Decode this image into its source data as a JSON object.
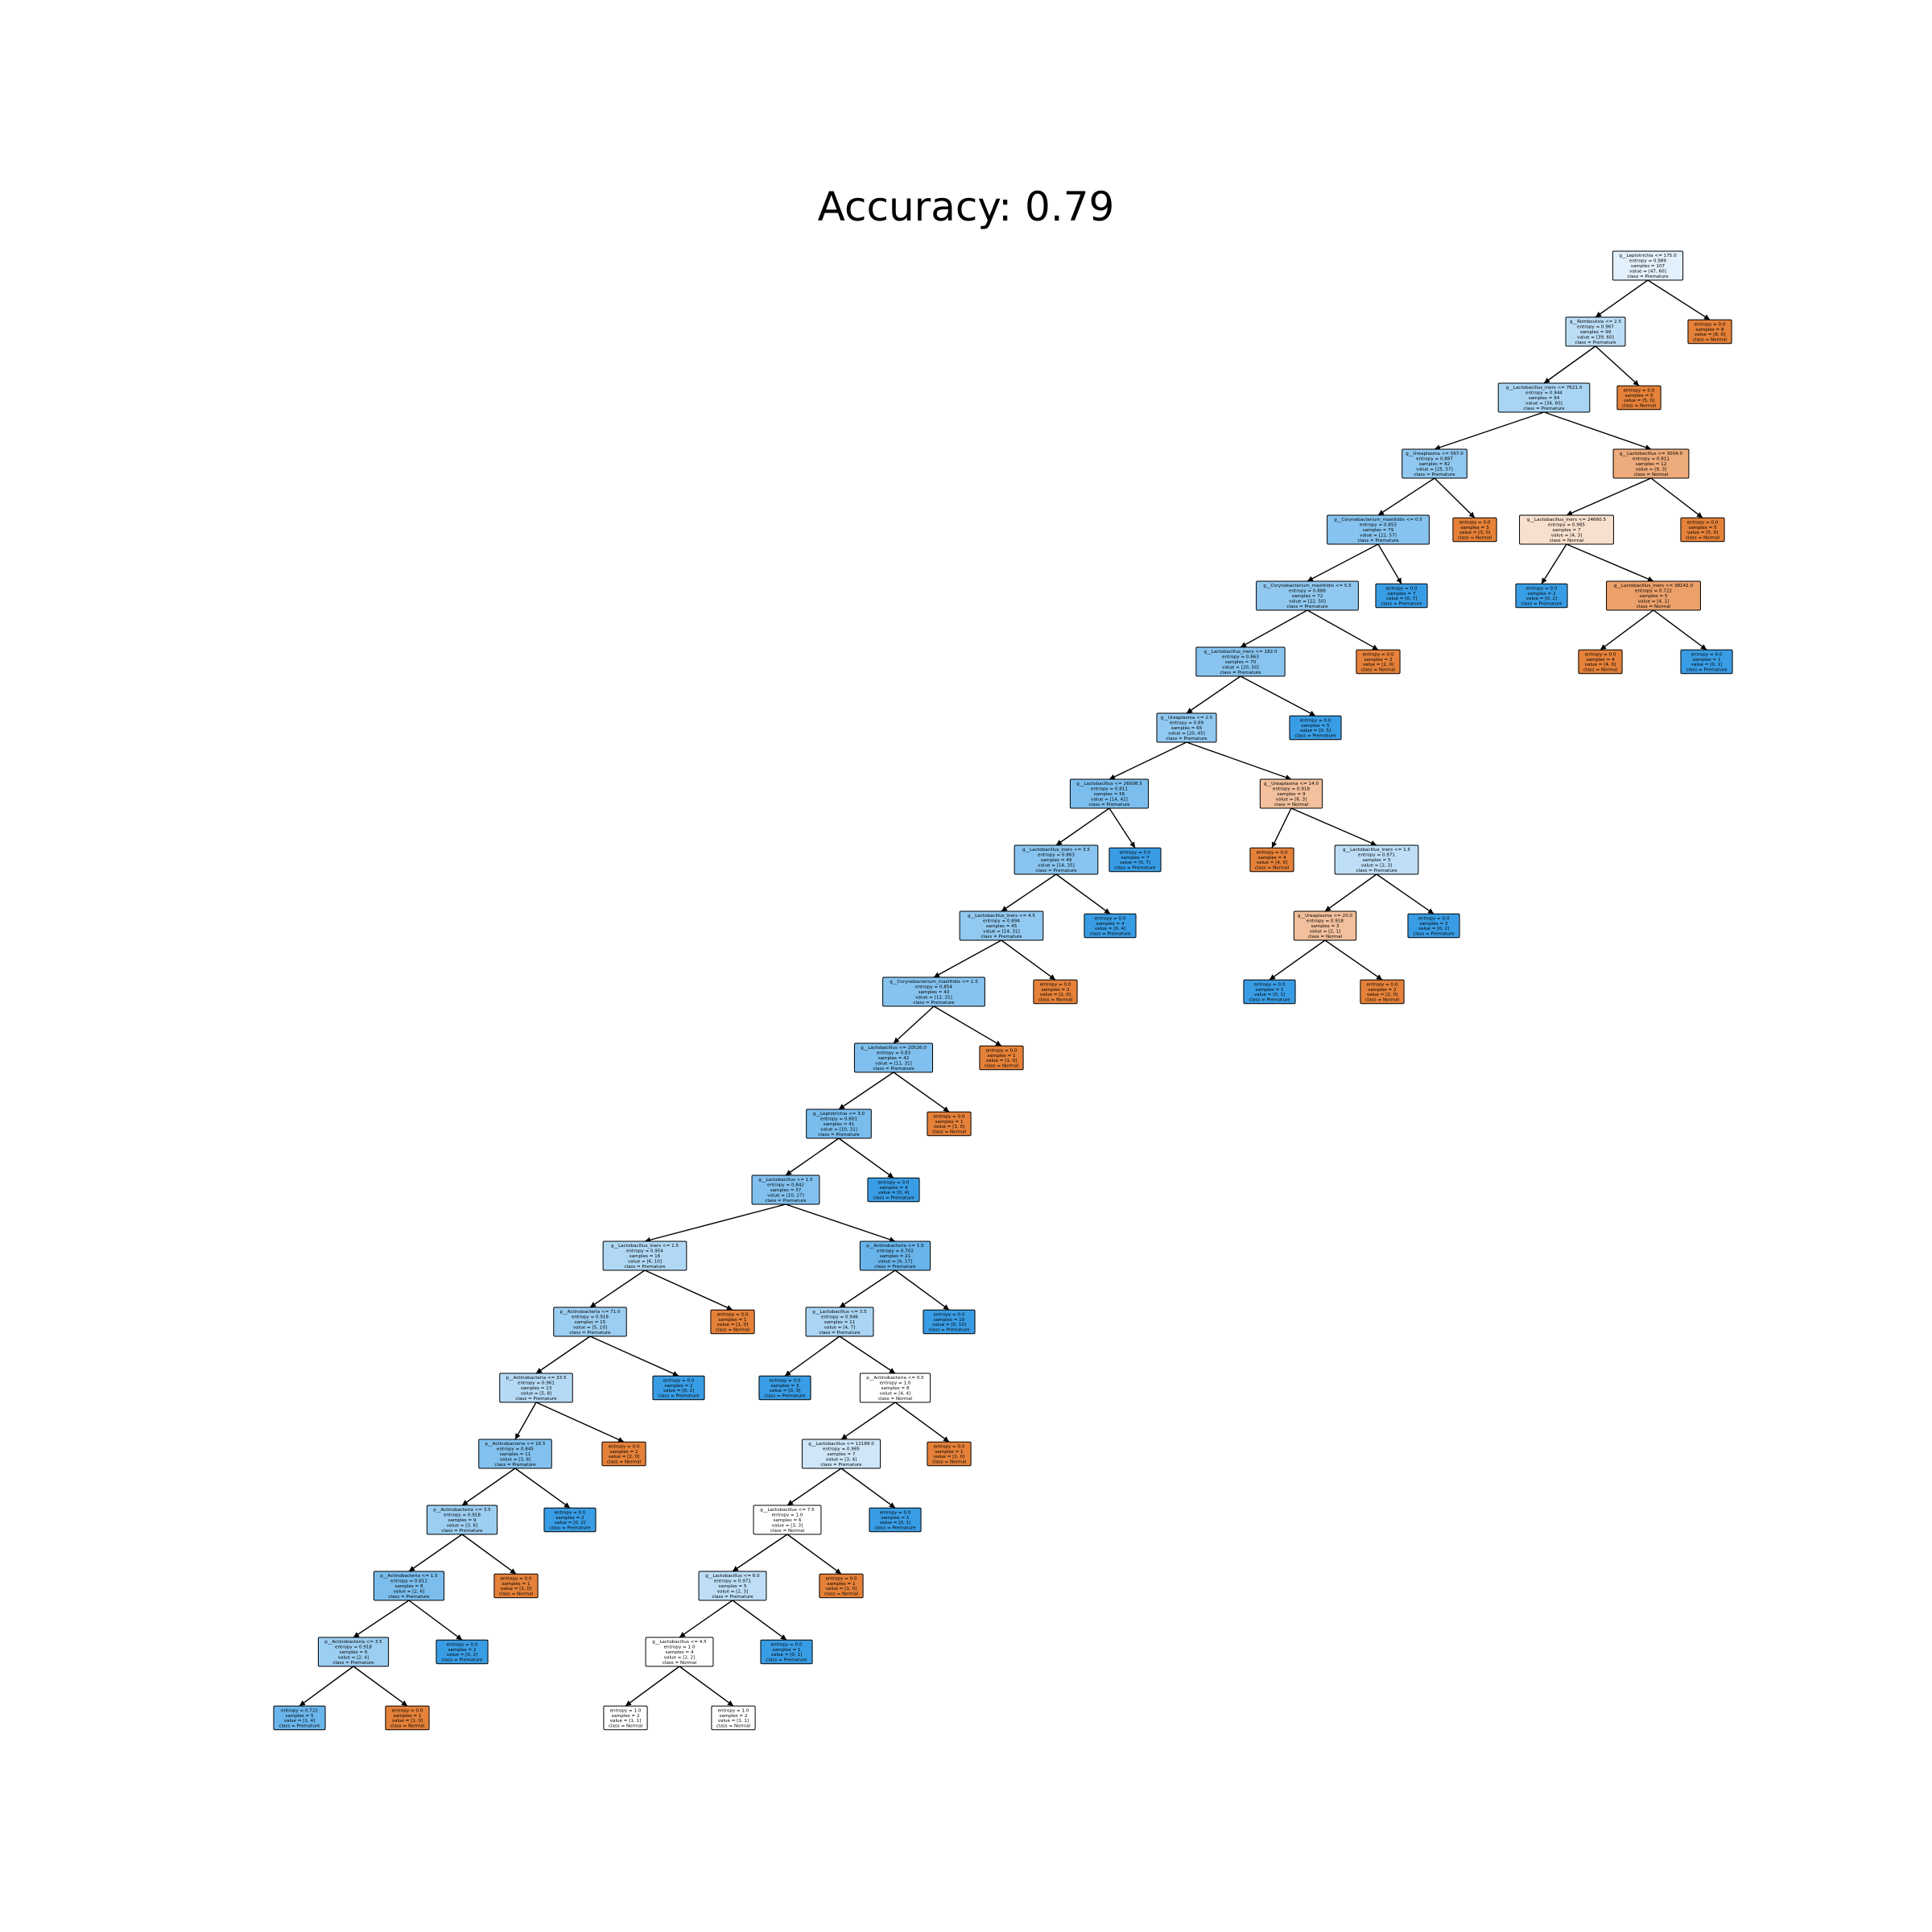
{
  "title": "Accuracy: 0.79",
  "colors": {
    "premature_strong": "#399de5",
    "premature_light": "#eaf4fc",
    "normal_strong": "#e58139",
    "normal_light": "#f9e5d5",
    "neutral": "#ffffff",
    "edge": "#000000"
  },
  "nodes": [
    {
      "id": 0,
      "lines": [
        "g__Leptotrichia <= 175.0",
        "entropy = 0.989",
        "samples = 107",
        "value = [47, 60]",
        "class = Premature"
      ],
      "color": "#e2f0fb"
    },
    {
      "id": 1,
      "lines": [
        "g__Romboutsia <= 2.5",
        "entropy = 0.967",
        "samples = 99",
        "value = [39, 60]",
        "class = Premature"
      ],
      "color": "#bbddf6"
    },
    {
      "id": 2,
      "lines": [
        "entropy = 0.0",
        "samples = 8",
        "value = [8, 0]",
        "class = Normal"
      ],
      "color": "#e58139"
    },
    {
      "id": 3,
      "lines": [
        "g__Lactobacillus_iners <= 7621.0",
        "entropy = 0.944",
        "samples = 94",
        "value = [34, 60]",
        "class = Premature"
      ],
      "color": "#a9d5f4"
    },
    {
      "id": 4,
      "lines": [
        "entropy = 0.0",
        "samples = 5",
        "value = [5, 0]",
        "class = Normal"
      ],
      "color": "#e58139"
    },
    {
      "id": 5,
      "lines": [
        "g__Ureaplasma <= 567.0",
        "entropy = 0.887",
        "samples = 82",
        "value = [25, 57]",
        "class = Premature"
      ],
      "color": "#90c8f0"
    },
    {
      "id": 6,
      "lines": [
        "g__Lactobacillus <= 3004.0",
        "entropy = 0.811",
        "samples = 12",
        "value = [9, 3]",
        "class = Normal"
      ],
      "color": "#eeab7b"
    },
    {
      "id": 7,
      "lines": [
        "g__Corynebacterium_mastitidis <= 0.5",
        "entropy = 0.853",
        "samples = 79",
        "value = [22, 57]",
        "class = Premature"
      ],
      "color": "#86c3ef"
    },
    {
      "id": 8,
      "lines": [
        "entropy = 0.0",
        "samples = 3",
        "value = [3, 0]",
        "class = Normal"
      ],
      "color": "#e58139"
    },
    {
      "id": 9,
      "lines": [
        "g__Lactobacillus_iners <= 24660.5",
        "entropy = 0.985",
        "samples = 7",
        "value = [4, 3]",
        "class = Normal"
      ],
      "color": "#f8e0ce"
    },
    {
      "id": 10,
      "lines": [
        "entropy = 0.0",
        "samples = 5",
        "value = [5, 0]",
        "class = Normal"
      ],
      "color": "#e58139"
    },
    {
      "id": 11,
      "lines": [
        "g__Corynebacterium_mastitidis <= 5.5",
        "entropy = 0.888",
        "samples = 72",
        "value = [22, 50]",
        "class = Premature"
      ],
      "color": "#90c8f0"
    },
    {
      "id": 12,
      "lines": [
        "entropy = 0.0",
        "samples = 7",
        "value = [0, 7]",
        "class = Premature"
      ],
      "color": "#399de5"
    },
    {
      "id": 13,
      "lines": [
        "entropy = 0.0",
        "samples = 2",
        "value = [0, 2]",
        "class = Premature"
      ],
      "color": "#399de5"
    },
    {
      "id": 14,
      "lines": [
        "g__Lactobacillus_iners <= 38142.0",
        "entropy = 0.722",
        "samples = 5",
        "value = [4, 1]",
        "class = Normal"
      ],
      "color": "#eca06a"
    },
    {
      "id": 15,
      "lines": [
        "g__Lactobacillus_iners <= 182.0",
        "entropy = 0.863",
        "samples = 70",
        "value = [20, 50]",
        "class = Premature"
      ],
      "color": "#88c4ef"
    },
    {
      "id": 16,
      "lines": [
        "entropy = 0.0",
        "samples = 2",
        "value = [2, 0]",
        "class = Normal"
      ],
      "color": "#e58139"
    },
    {
      "id": 17,
      "lines": [
        "entropy = 0.0",
        "samples = 4",
        "value = [4, 0]",
        "class = Normal"
      ],
      "color": "#e58139"
    },
    {
      "id": 18,
      "lines": [
        "entropy = 0.0",
        "samples = 1",
        "value = [0, 1]",
        "class = Premature"
      ],
      "color": "#399de5"
    },
    {
      "id": 19,
      "lines": [
        "g__Ureaplasma <= 2.5",
        "entropy = 0.89",
        "samples = 65",
        "value = [20, 45]",
        "class = Premature"
      ],
      "color": "#91c9f1"
    },
    {
      "id": 20,
      "lines": [
        "entropy = 0.0",
        "samples = 5",
        "value = [0, 5]",
        "class = Premature"
      ],
      "color": "#399de5"
    },
    {
      "id": 21,
      "lines": [
        "g__Lactobacillus <= 26008.5",
        "entropy = 0.811",
        "samples = 56",
        "value = [14, 42]",
        "class = Premature"
      ],
      "color": "#7bbeee"
    },
    {
      "id": 22,
      "lines": [
        "g__Ureaplasma <= 14.0",
        "entropy = 0.918",
        "samples = 9",
        "value = [6, 3]",
        "class = Normal"
      ],
      "color": "#f2c09c"
    },
    {
      "id": 23,
      "lines": [
        "g__Lactobacillus_iners <= 3.5",
        "entropy = 0.863",
        "samples = 49",
        "value = [14, 35]",
        "class = Premature"
      ],
      "color": "#88c4ef"
    },
    {
      "id": 24,
      "lines": [
        "entropy = 0.0",
        "samples = 7",
        "value = [0, 7]",
        "class = Premature"
      ],
      "color": "#399de5"
    },
    {
      "id": 25,
      "lines": [
        "entropy = 0.0",
        "samples = 4",
        "value = [4, 0]",
        "class = Normal"
      ],
      "color": "#e58139"
    },
    {
      "id": 26,
      "lines": [
        "g__Lactobacillus_iners <= 1.5",
        "entropy = 0.971",
        "samples = 5",
        "value = [2, 3]",
        "class = Premature"
      ],
      "color": "#bddef6"
    },
    {
      "id": 27,
      "lines": [
        "g__Lactobacillus_iners <= 4.5",
        "entropy = 0.894",
        "samples = 45",
        "value = [14, 31]",
        "class = Premature"
      ],
      "color": "#92c9f1"
    },
    {
      "id": 28,
      "lines": [
        "entropy = 0.0",
        "samples = 4",
        "value = [0, 4]",
        "class = Premature"
      ],
      "color": "#399de5"
    },
    {
      "id": 29,
      "lines": [
        "g__Ureaplasma <= 20.0",
        "entropy = 0.918",
        "samples = 3",
        "value = [2, 1]",
        "class = Normal"
      ],
      "color": "#f2c09c"
    },
    {
      "id": 30,
      "lines": [
        "entropy = 0.0",
        "samples = 2",
        "value = [0, 2]",
        "class = Premature"
      ],
      "color": "#399de5"
    },
    {
      "id": 31,
      "lines": [
        "g__Corynebacterium_mastitidis <= 1.5",
        "entropy = 0.854",
        "samples = 43",
        "value = [12, 31]",
        "class = Premature"
      ],
      "color": "#86c3ef"
    },
    {
      "id": 32,
      "lines": [
        "entropy = 0.0",
        "samples = 2",
        "value = [2, 0]",
        "class = Normal"
      ],
      "color": "#e58139"
    },
    {
      "id": 33,
      "lines": [
        "entropy = 0.0",
        "samples = 1",
        "value = [0, 1]",
        "class = Premature"
      ],
      "color": "#399de5"
    },
    {
      "id": 34,
      "lines": [
        "entropy = 0.0",
        "samples = 2",
        "value = [2, 0]",
        "class = Normal"
      ],
      "color": "#e58139"
    },
    {
      "id": 35,
      "lines": [
        "g__Lactobacillus <= 20526.0",
        "entropy = 0.83",
        "samples = 42",
        "value = [11, 31]",
        "class = Premature"
      ],
      "color": "#7fc0ee"
    },
    {
      "id": 36,
      "lines": [
        "entropy = 0.0",
        "samples = 1",
        "value = [1, 0]",
        "class = Normal"
      ],
      "color": "#e58139"
    },
    {
      "id": 37,
      "lines": [
        "g__Leptotrichia <= 3.0",
        "entropy = 0.801",
        "samples = 41",
        "value = [10, 31]",
        "class = Premature"
      ],
      "color": "#79bded"
    },
    {
      "id": 38,
      "lines": [
        "entropy = 0.0",
        "samples = 1",
        "value = [1, 0]",
        "class = Normal"
      ],
      "color": "#e58139"
    },
    {
      "id": 39,
      "lines": [
        "g__Lactobacillus <= 1.5",
        "entropy = 0.842",
        "samples = 37",
        "value = [10, 27]",
        "class = Premature"
      ],
      "color": "#82c1ef"
    },
    {
      "id": 40,
      "lines": [
        "entropy = 0.0",
        "samples = 4",
        "value = [0, 4]",
        "class = Premature"
      ],
      "color": "#399de5"
    },
    {
      "id": 41,
      "lines": [
        "g__Lactobacillus_iners <= 1.5",
        "entropy = 0.954",
        "samples = 16",
        "value = [6, 10]",
        "class = Premature"
      ],
      "color": "#b0d8f5"
    },
    {
      "id": 42,
      "lines": [
        "p__Actinobacteria <= 1.5",
        "entropy = 0.702",
        "samples = 21",
        "value = [4, 17]",
        "class = Premature"
      ],
      "color": "#68b4eb"
    },
    {
      "id": 43,
      "lines": [
        "p__Actinobacteria <= 71.0",
        "entropy = 0.918",
        "samples = 15",
        "value = [5, 10]",
        "class = Premature"
      ],
      "color": "#9ccef2"
    },
    {
      "id": 44,
      "lines": [
        "entropy = 0.0",
        "samples = 1",
        "value = [1, 0]",
        "class = Normal"
      ],
      "color": "#e58139"
    },
    {
      "id": 45,
      "lines": [
        "g__Lactobacillus <= 3.5",
        "entropy = 0.946",
        "samples = 11",
        "value = [4, 7]",
        "class = Premature"
      ],
      "color": "#aad5f4"
    },
    {
      "id": 46,
      "lines": [
        "entropy = 0.0",
        "samples = 10",
        "value = [0, 10]",
        "class = Premature"
      ],
      "color": "#399de5"
    },
    {
      "id": 47,
      "lines": [
        "p__Actinobacteria <= 33.5",
        "entropy = 0.961",
        "samples = 13",
        "value = [5, 8]",
        "class = Premature"
      ],
      "color": "#b5daf5"
    },
    {
      "id": 48,
      "lines": [
        "entropy = 0.0",
        "samples = 2",
        "value = [0, 2]",
        "class = Premature"
      ],
      "color": "#399de5"
    },
    {
      "id": 49,
      "lines": [
        "entropy = 0.0",
        "samples = 3",
        "value = [0, 3]",
        "class = Premature"
      ],
      "color": "#399de5"
    },
    {
      "id": 50,
      "lines": [
        "p__Actinobacteria <= 0.5",
        "entropy = 1.0",
        "samples = 8",
        "value = [4, 4]",
        "class = Normal"
      ],
      "color": "#ffffff"
    },
    {
      "id": 51,
      "lines": [
        "p__Actinobacteria <= 16.5",
        "entropy = 0.845",
        "samples = 11",
        "value = [3, 8]",
        "class = Premature"
      ],
      "color": "#83c2ef"
    },
    {
      "id": 52,
      "lines": [
        "entropy = 0.0",
        "samples = 2",
        "value = [2, 0]",
        "class = Normal"
      ],
      "color": "#e58139"
    },
    {
      "id": 53,
      "lines": [
        "g__Lactobacillus <= 12189.0",
        "entropy = 0.985",
        "samples = 7",
        "value = [3, 4]",
        "class = Premature"
      ],
      "color": "#cee6f8"
    },
    {
      "id": 54,
      "lines": [
        "entropy = 0.0",
        "samples = 1",
        "value = [1, 0]",
        "class = Normal"
      ],
      "color": "#e58139"
    },
    {
      "id": 55,
      "lines": [
        "p__Actinobacteria <= 3.5",
        "entropy = 0.918",
        "samples = 9",
        "value = [3, 6]",
        "class = Premature"
      ],
      "color": "#9ccef2"
    },
    {
      "id": 56,
      "lines": [
        "entropy = 0.0",
        "samples = 2",
        "value = [0, 2]",
        "class = Premature"
      ],
      "color": "#399de5"
    },
    {
      "id": 57,
      "lines": [
        "g__Lactobacillus <= 7.5",
        "entropy = 1.0",
        "samples = 6",
        "value = [3, 3]",
        "class = Normal"
      ],
      "color": "#ffffff"
    },
    {
      "id": 58,
      "lines": [
        "entropy = 0.0",
        "samples = 1",
        "value = [0, 1]",
        "class = Premature"
      ],
      "color": "#399de5"
    },
    {
      "id": 59,
      "lines": [
        "p__Actinobacteria <= 1.5",
        "entropy = 0.811",
        "samples = 8",
        "value = [2, 6]",
        "class = Premature"
      ],
      "color": "#7bbeee"
    },
    {
      "id": 60,
      "lines": [
        "entropy = 0.0",
        "samples = 1",
        "value = [1, 0]",
        "class = Normal"
      ],
      "color": "#e58139"
    },
    {
      "id": 61,
      "lines": [
        "g__Lactobacillus <= 6.0",
        "entropy = 0.971",
        "samples = 5",
        "value = [2, 3]",
        "class = Premature"
      ],
      "color": "#bddef6"
    },
    {
      "id": 62,
      "lines": [
        "entropy = 0.0",
        "samples = 1",
        "value = [1, 0]",
        "class = Normal"
      ],
      "color": "#e58139"
    },
    {
      "id": 63,
      "lines": [
        "p__Actinobacteria <= 3.5",
        "entropy = 0.918",
        "samples = 6",
        "value = [2, 4]",
        "class = Premature"
      ],
      "color": "#9ccef2"
    },
    {
      "id": 64,
      "lines": [
        "entropy = 0.0",
        "samples = 2",
        "value = [0, 2]",
        "class = Premature"
      ],
      "color": "#399de5"
    },
    {
      "id": 65,
      "lines": [
        "g__Lactobacillus <= 4.5",
        "entropy = 1.0",
        "samples = 4",
        "value = [2, 2]",
        "class = Normal"
      ],
      "color": "#ffffff"
    },
    {
      "id": 66,
      "lines": [
        "entropy = 0.0",
        "samples = 1",
        "value = [0, 1]",
        "class = Premature"
      ],
      "color": "#399de5"
    },
    {
      "id": 67,
      "lines": [
        "entropy = 0.722",
        "samples = 5",
        "value = [1, 4]",
        "class = Premature"
      ],
      "color": "#6ab6ec"
    },
    {
      "id": 68,
      "lines": [
        "entropy = 0.0",
        "samples = 1",
        "value = [1, 0]",
        "class = Normal"
      ],
      "color": "#e58139"
    },
    {
      "id": 69,
      "lines": [
        "entropy = 1.0",
        "samples = 2",
        "value = [1, 1]",
        "class = Normal"
      ],
      "color": "#ffffff"
    },
    {
      "id": 70,
      "lines": [
        "entropy = 1.0",
        "samples = 2",
        "value = [1, 1]",
        "class = Normal"
      ],
      "color": "#ffffff"
    }
  ],
  "edges": [
    [
      0,
      1
    ],
    [
      0,
      2
    ],
    [
      1,
      3
    ],
    [
      1,
      4
    ],
    [
      3,
      5
    ],
    [
      3,
      6
    ],
    [
      5,
      7
    ],
    [
      5,
      8
    ],
    [
      6,
      9
    ],
    [
      6,
      10
    ],
    [
      7,
      11
    ],
    [
      7,
      12
    ],
    [
      9,
      13
    ],
    [
      9,
      14
    ],
    [
      11,
      15
    ],
    [
      11,
      16
    ],
    [
      14,
      17
    ],
    [
      14,
      18
    ],
    [
      15,
      19
    ],
    [
      15,
      20
    ],
    [
      19,
      21
    ],
    [
      19,
      22
    ],
    [
      21,
      23
    ],
    [
      21,
      24
    ],
    [
      22,
      25
    ],
    [
      22,
      26
    ],
    [
      23,
      27
    ],
    [
      23,
      28
    ],
    [
      26,
      29
    ],
    [
      26,
      30
    ],
    [
      27,
      31
    ],
    [
      27,
      32
    ],
    [
      29,
      33
    ],
    [
      29,
      34
    ],
    [
      31,
      35
    ],
    [
      31,
      36
    ],
    [
      35,
      37
    ],
    [
      35,
      38
    ],
    [
      37,
      39
    ],
    [
      37,
      40
    ],
    [
      39,
      41
    ],
    [
      39,
      42
    ],
    [
      41,
      43
    ],
    [
      41,
      44
    ],
    [
      42,
      45
    ],
    [
      42,
      46
    ],
    [
      43,
      47
    ],
    [
      43,
      48
    ],
    [
      45,
      49
    ],
    [
      45,
      50
    ],
    [
      47,
      51
    ],
    [
      47,
      52
    ],
    [
      50,
      53
    ],
    [
      50,
      54
    ],
    [
      51,
      55
    ],
    [
      51,
      56
    ],
    [
      53,
      57
    ],
    [
      53,
      58
    ],
    [
      55,
      59
    ],
    [
      55,
      60
    ],
    [
      57,
      61
    ],
    [
      57,
      62
    ],
    [
      59,
      63
    ],
    [
      59,
      64
    ],
    [
      61,
      65
    ],
    [
      61,
      66
    ],
    [
      63,
      67
    ],
    [
      63,
      68
    ],
    [
      65,
      69
    ],
    [
      65,
      70
    ]
  ]
}
